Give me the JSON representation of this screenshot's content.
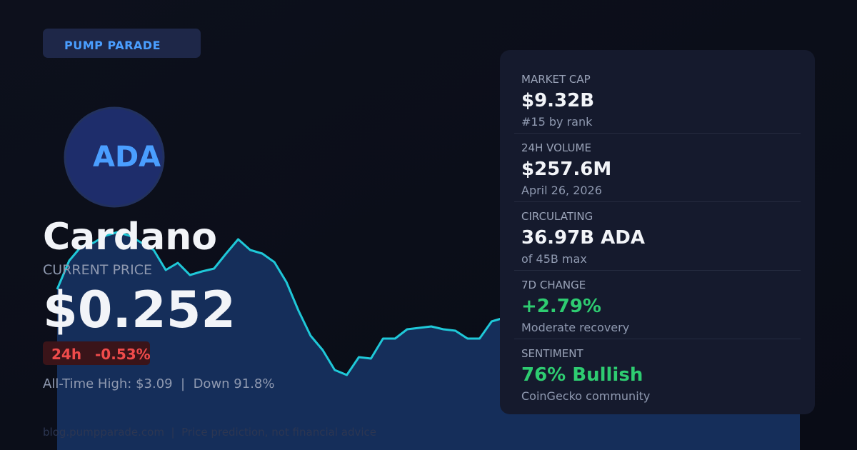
{
  "brand": "PUMP PARADE",
  "coin": {
    "symbol": "ADA",
    "name": "Cardano"
  },
  "price": {
    "label": "CURRENT PRICE",
    "value": "$0.252",
    "change_period": "24h",
    "change": "-0.53%",
    "ath_line": "All-Time High: $3.09  |  Down 91.8%"
  },
  "price_history": {
    "values": [
      225,
      265,
      285,
      290,
      300,
      305,
      300,
      290,
      280,
      252,
      262,
      245,
      250,
      254,
      275,
      295,
      280,
      275,
      263,
      235,
      195,
      160,
      140,
      112,
      105,
      130,
      128,
      156,
      156,
      169,
      171,
      173,
      169,
      167,
      156,
      156,
      180,
      185
    ]
  },
  "stats": [
    {
      "label": "MARKET CAP",
      "value": "$9.32B",
      "sub": "#15 by rank"
    },
    {
      "label": "24H VOLUME",
      "value": "$257.6M",
      "sub": "April 26, 2026"
    },
    {
      "label": "CIRCULATING",
      "value": "36.97B ADA",
      "sub": "of 45B max"
    },
    {
      "label": "7D CHANGE",
      "value": "+2.79%",
      "sub": "Moderate recovery"
    },
    {
      "label": "SENTIMENT",
      "value": "76% Bullish",
      "sub": "CoinGecko community"
    }
  ],
  "footer": "blog.pumpparade.com  |  Price prediction, not financial advice"
}
